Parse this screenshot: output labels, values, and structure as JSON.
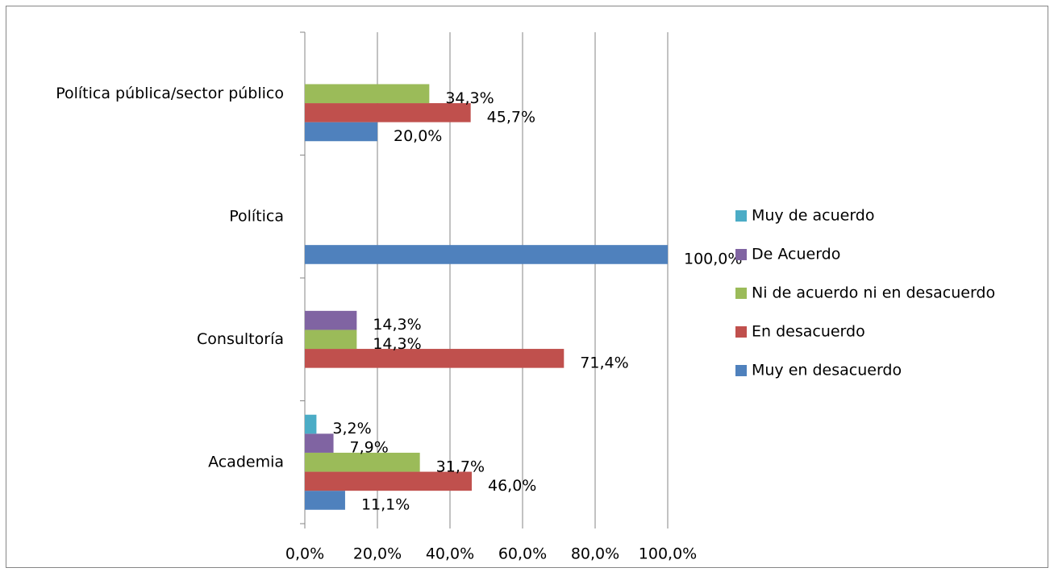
{
  "chart_data": {
    "type": "bar",
    "orientation": "horizontal",
    "categories": [
      "Academia",
      "Consultoría",
      "Política",
      "Política pública/sector público"
    ],
    "series": [
      {
        "name": "Muy en desacuerdo",
        "color": "#4f81bd",
        "values": [
          11.1,
          null,
          100,
          20
        ],
        "value_labels": [
          "11,1%",
          null,
          "100,0%",
          "20,0%"
        ]
      },
      {
        "name": "En desacuerdo",
        "color": "#c0504d",
        "values": [
          46,
          71.4,
          null,
          45.7
        ],
        "value_labels": [
          "46,0%",
          "71,4%",
          null,
          "45,7%"
        ]
      },
      {
        "name": "Ni de acuerdo ni en desacuerdo",
        "color": "#9bbb59",
        "values": [
          31.7,
          14.3,
          null,
          34.3
        ],
        "value_labels": [
          "31,7%",
          "14,3%",
          null,
          "34,3%"
        ]
      },
      {
        "name": "De Acuerdo",
        "color": "#8064a2",
        "values": [
          7.9,
          14.3,
          null,
          null
        ],
        "value_labels": [
          "7,9%",
          "14,3%",
          null,
          null
        ]
      },
      {
        "name": "Muy de acuerdo",
        "color": "#4bacc6",
        "values": [
          3.2,
          null,
          null,
          null
        ],
        "value_labels": [
          "3,2%",
          null,
          null,
          null
        ]
      }
    ],
    "xlim": [
      0,
      100
    ],
    "xticks": [
      {
        "value": 0,
        "label": "0,0%"
      },
      {
        "value": 20,
        "label": "20,0%"
      },
      {
        "value": 40,
        "label": "40,0%"
      },
      {
        "value": 60,
        "label": "60,0%"
      },
      {
        "value": 80,
        "label": "80,0%"
      },
      {
        "value": 100,
        "label": "100,0%"
      }
    ],
    "grid": true,
    "legend": "right"
  }
}
